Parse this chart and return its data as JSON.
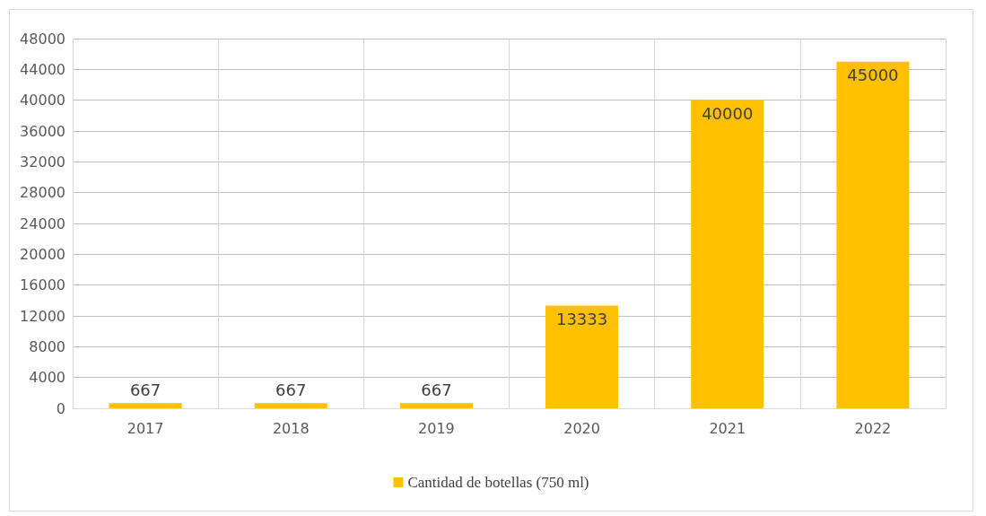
{
  "chart_data": {
    "type": "bar",
    "categories": [
      "2017",
      "2018",
      "2019",
      "2020",
      "2021",
      "2022"
    ],
    "series": [
      {
        "name": "Cantidad de botellas (750 ml)",
        "color": "#ffc000",
        "values": [
          667,
          667,
          667,
          13333,
          40000,
          45000
        ]
      }
    ],
    "ylim": [
      0,
      48000
    ],
    "yticks": [
      0,
      4000,
      8000,
      12000,
      16000,
      20000,
      24000,
      28000,
      32000,
      36000,
      40000,
      44000,
      48000
    ],
    "grid": true,
    "legend": "bottom",
    "data_labels": true
  }
}
